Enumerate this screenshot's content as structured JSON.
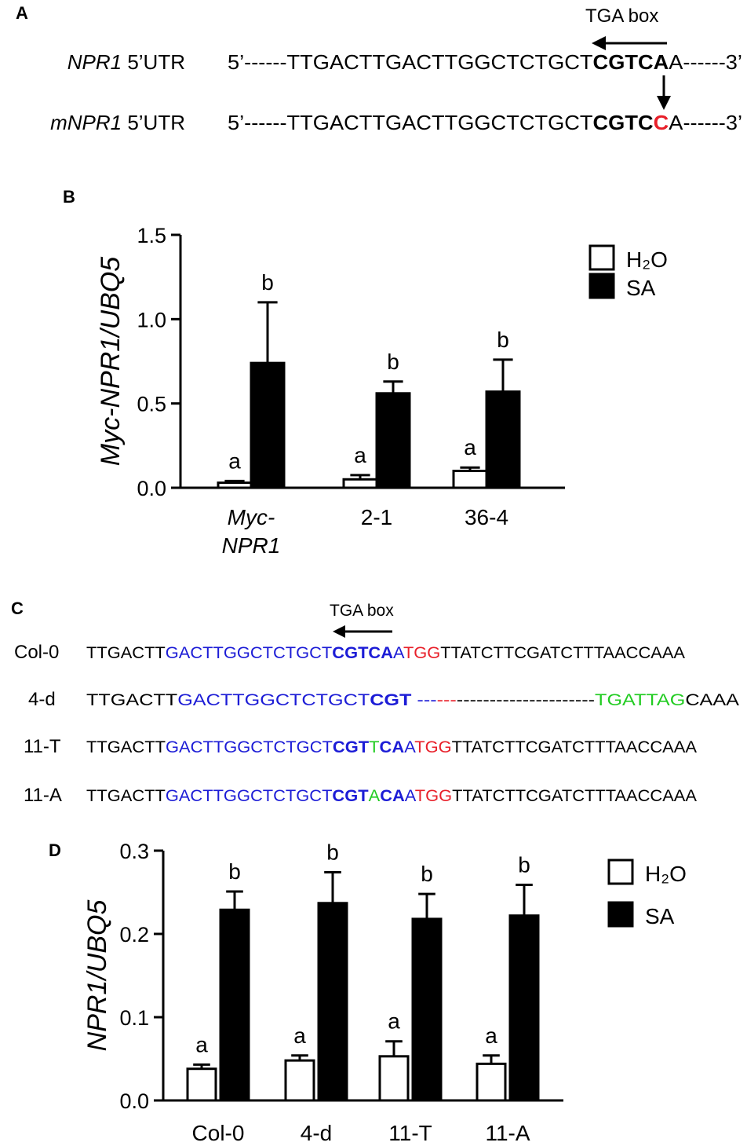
{
  "panelA": {
    "label": "A",
    "tga_label": "TGA box",
    "rows": [
      {
        "name": "NPR1",
        "suffix": " 5’UTR",
        "segments": [
          {
            "t": "5’------TTGACTTGACTTGGCTCTGCT",
            "c": "#000000",
            "b": false
          },
          {
            "t": "CGTCA",
            "c": "#000000",
            "b": true
          },
          {
            "t": "A------3’",
            "c": "#000000",
            "b": false
          }
        ]
      },
      {
        "name": "mNPR1",
        "suffix": " 5’UTR",
        "segments": [
          {
            "t": "5’------TTGACTTGACTTGGCTCTGCT",
            "c": "#000000",
            "b": false
          },
          {
            "t": "CGTC",
            "c": "#000000",
            "b": true
          },
          {
            "t": "C",
            "c": "#e8202a",
            "b": true
          },
          {
            "t": "A------3’",
            "c": "#000000",
            "b": false
          }
        ]
      }
    ]
  },
  "panelC": {
    "label": "C",
    "tga_label": "TGA box",
    "rows": [
      {
        "name": "Col-0",
        "segments": [
          {
            "t": "TTGACTT",
            "c": "#000000",
            "b": false
          },
          {
            "t": "GACTTGGCTCTGCT",
            "c": "#1c1cd6",
            "b": false
          },
          {
            "t": "CGTCA",
            "c": "#1c1cd6",
            "b": true
          },
          {
            "t": "A",
            "c": "#1c1cd6",
            "b": false
          },
          {
            "t": "TGG",
            "c": "#e8202a",
            "b": false
          },
          {
            "t": "TTATCTTCGATCTTTAACCAAA",
            "c": "#000000",
            "b": false
          }
        ]
      },
      {
        "name": "4-d",
        "segments": [
          {
            "t": "TTGACTT",
            "c": "#000000",
            "b": false
          },
          {
            "t": "GACTTGGCTCTGCT",
            "c": "#1c1cd6",
            "b": false
          },
          {
            "t": "CGT",
            "c": "#1c1cd6",
            "b": true
          },
          {
            "t": " ---",
            "c": "#1c1cd6",
            "b": false
          },
          {
            "t": "---",
            "c": "#e8202a",
            "b": false
          },
          {
            "t": "---------------------",
            "c": "#000000",
            "b": false
          },
          {
            "t": "TGATTAG",
            "c": "#22cc22",
            "b": false
          },
          {
            "t": "CAAA",
            "c": "#000000",
            "b": false
          }
        ]
      },
      {
        "name": "11-T",
        "segments": [
          {
            "t": "TTGACTT",
            "c": "#000000",
            "b": false
          },
          {
            "t": "GACTTGGCTCTGCT",
            "c": "#1c1cd6",
            "b": false
          },
          {
            "t": "CGT",
            "c": "#1c1cd6",
            "b": true
          },
          {
            "t": "T",
            "c": "#22cc22",
            "b": false
          },
          {
            "t": "CA",
            "c": "#1c1cd6",
            "b": true
          },
          {
            "t": "A",
            "c": "#1c1cd6",
            "b": false
          },
          {
            "t": "TGG",
            "c": "#e8202a",
            "b": false
          },
          {
            "t": "TTATCTTCGATCTTTAACCAAA",
            "c": "#000000",
            "b": false
          }
        ]
      },
      {
        "name": "11-A",
        "segments": [
          {
            "t": "TTGACTT",
            "c": "#000000",
            "b": false
          },
          {
            "t": "GACTTGGCTCTGCT",
            "c": "#1c1cd6",
            "b": false
          },
          {
            "t": "CGT",
            "c": "#1c1cd6",
            "b": true
          },
          {
            "t": "A",
            "c": "#22cc22",
            "b": false
          },
          {
            "t": "CA",
            "c": "#1c1cd6",
            "b": true
          },
          {
            "t": "A",
            "c": "#1c1cd6",
            "b": false
          },
          {
            "t": "TGG",
            "c": "#e8202a",
            "b": false
          },
          {
            "t": "TTATCTTCGATCTTTAACCAAA",
            "c": "#000000",
            "b": false
          }
        ]
      }
    ]
  },
  "chart_data": [
    {
      "panel": "B",
      "type": "bar",
      "ylabel": "Myc-NPR1/UBQ5",
      "ylim": [
        0,
        1.5
      ],
      "yticks": [
        "0.0",
        "0.5",
        "1.0",
        "1.5"
      ],
      "categories": [
        [
          "Myc-",
          "NPR1"
        ],
        [
          "2-1"
        ],
        [
          "36-4"
        ]
      ],
      "category_italic": [
        true,
        false,
        false
      ],
      "legend": [
        "H₂O",
        "SA"
      ],
      "series": [
        {
          "name": "H₂O",
          "fill": "#ffffff",
          "values": [
            0.03,
            0.05,
            0.1
          ],
          "errors": [
            0.01,
            0.025,
            0.02
          ],
          "letters": [
            "a",
            "a",
            "a"
          ]
        },
        {
          "name": "SA",
          "fill": "#000000",
          "values": [
            0.74,
            0.56,
            0.57
          ],
          "errors": [
            0.36,
            0.07,
            0.19
          ],
          "letters": [
            "b",
            "b",
            "b"
          ]
        }
      ]
    },
    {
      "panel": "D",
      "type": "bar",
      "ylabel": "NPR1/UBQ5",
      "ylim": [
        0,
        0.3
      ],
      "yticks": [
        "0.0",
        "0.1",
        "0.2",
        "0.3"
      ],
      "categories": [
        [
          "Col-0"
        ],
        [
          "4-d"
        ],
        [
          "11-T"
        ],
        [
          "11-A"
        ]
      ],
      "category_italic": [
        false,
        false,
        false,
        false
      ],
      "legend": [
        "H₂O",
        "SA"
      ],
      "series": [
        {
          "name": "H₂O",
          "fill": "#ffffff",
          "values": [
            0.038,
            0.048,
            0.053,
            0.044
          ],
          "errors": [
            0.005,
            0.006,
            0.018,
            0.01
          ],
          "letters": [
            "a",
            "a",
            "a",
            "a"
          ]
        },
        {
          "name": "SA",
          "fill": "#000000",
          "values": [
            0.229,
            0.237,
            0.218,
            0.222
          ],
          "errors": [
            0.022,
            0.037,
            0.03,
            0.037
          ],
          "letters": [
            "b",
            "b",
            "b",
            "b"
          ]
        }
      ]
    }
  ]
}
